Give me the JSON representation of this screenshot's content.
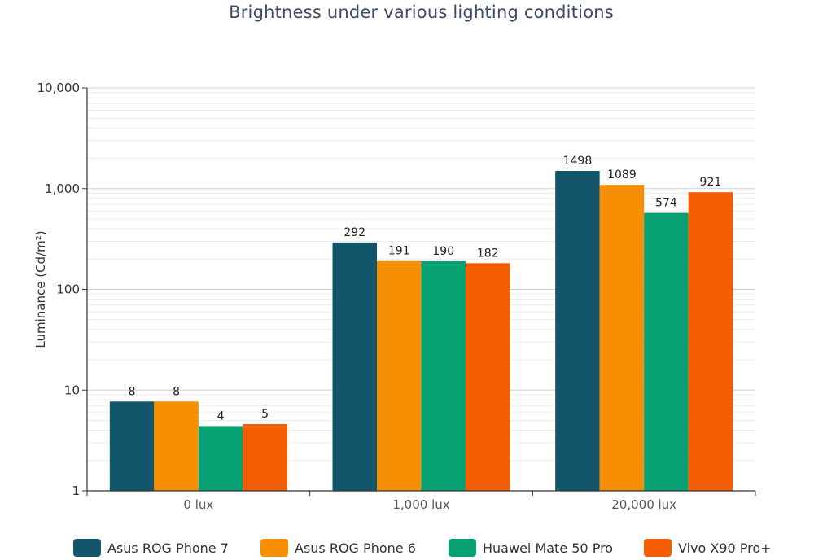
{
  "chart_data": {
    "type": "bar",
    "title": "Brightness under various lighting conditions",
    "xlabel": "",
    "ylabel": "Luminance (Cd/m²)",
    "yscale": "log",
    "ylim": [
      1,
      10000
    ],
    "yticks": [
      1,
      10,
      100,
      1000,
      10000
    ],
    "ytick_labels": [
      "1",
      "10",
      "100",
      "1,000",
      "10,000"
    ],
    "grid": true,
    "legend_position": "bottom",
    "categories": [
      "0 lux",
      "1,000 lux",
      "20,000 lux"
    ],
    "series": [
      {
        "name": "Asus ROG Phone 7",
        "color": "#13566b",
        "values": [
          7.7,
          292,
          1498
        ],
        "labels": [
          "8",
          "292",
          "1498"
        ]
      },
      {
        "name": "Asus ROG Phone 6",
        "color": "#f78f05",
        "values": [
          7.7,
          191,
          1089
        ],
        "labels": [
          "8",
          "191",
          "1089"
        ]
      },
      {
        "name": "Huawei Mate 50 Pro",
        "color": "#06a073",
        "values": [
          4.4,
          190,
          574
        ],
        "labels": [
          "4",
          "190",
          "574"
        ]
      },
      {
        "name": "Vivo X90 Pro+",
        "color": "#f45d01",
        "values": [
          4.6,
          182,
          921
        ],
        "labels": [
          "5",
          "182",
          "921"
        ]
      }
    ]
  }
}
